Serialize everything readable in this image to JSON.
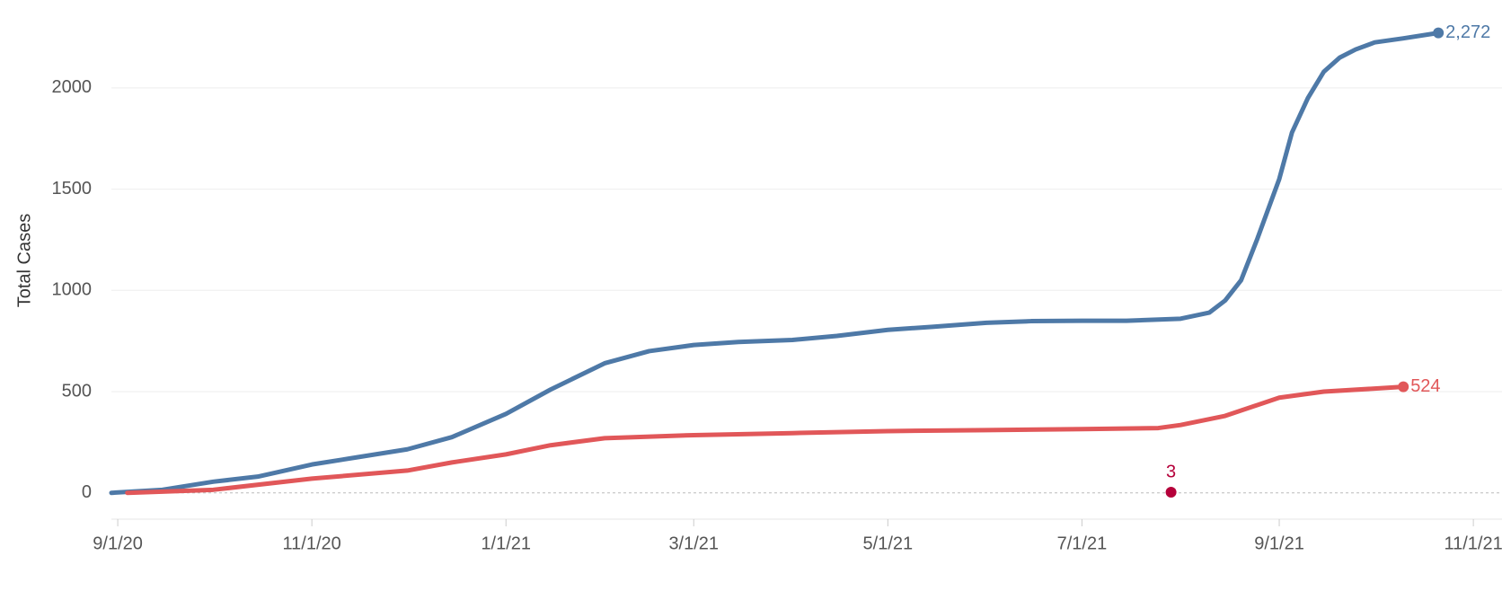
{
  "chart_data": {
    "type": "line",
    "y_label": "Total Cases",
    "xlim": [
      "2020-08-30",
      "2021-11-10"
    ],
    "xticks": [
      {
        "value": "2020-09-01",
        "label": "9/1/20"
      },
      {
        "value": "2020-11-01",
        "label": "11/1/20"
      },
      {
        "value": "2021-01-01",
        "label": "1/1/21"
      },
      {
        "value": "2021-03-01",
        "label": "3/1/21"
      },
      {
        "value": "2021-05-01",
        "label": "5/1/21"
      },
      {
        "value": "2021-07-01",
        "label": "7/1/21"
      },
      {
        "value": "2021-09-01",
        "label": "9/1/21"
      },
      {
        "value": "2021-11-01",
        "label": "11/1/21"
      }
    ],
    "ylim": [
      -130,
      2390
    ],
    "yticks": [
      0,
      500,
      1000,
      1500,
      2000
    ],
    "grid": true,
    "series": [
      {
        "color": "#4e79a7",
        "x": [
          "2020-08-30",
          "2020-09-15",
          "2020-10-01",
          "2020-10-15",
          "2020-11-01",
          "2020-11-15",
          "2020-12-01",
          "2020-12-15",
          "2021-01-01",
          "2021-01-15",
          "2021-02-01",
          "2021-02-15",
          "2021-03-01",
          "2021-03-15",
          "2021-04-01",
          "2021-04-15",
          "2021-05-01",
          "2021-05-15",
          "2021-06-01",
          "2021-06-15",
          "2021-07-01",
          "2021-07-15",
          "2021-08-01",
          "2021-08-10",
          "2021-08-15",
          "2021-08-20",
          "2021-08-25",
          "2021-09-01",
          "2021-09-05",
          "2021-09-10",
          "2021-09-15",
          "2021-09-20",
          "2021-09-25",
          "2021-10-01",
          "2021-10-10",
          "2021-10-21"
        ],
        "values": [
          0,
          15,
          55,
          80,
          140,
          175,
          215,
          275,
          390,
          510,
          640,
          700,
          730,
          745,
          755,
          775,
          805,
          820,
          840,
          848,
          850,
          850,
          860,
          890,
          950,
          1050,
          1250,
          1550,
          1780,
          1950,
          2080,
          2150,
          2190,
          2225,
          2245,
          2272
        ],
        "value_labels": [
          null,
          null,
          null,
          null,
          null,
          null,
          null,
          null,
          null,
          null,
          null,
          null,
          null,
          null,
          null,
          null,
          null,
          null,
          null,
          null,
          null,
          null,
          null,
          null,
          null,
          null,
          null,
          null,
          null,
          null,
          null,
          null,
          null,
          null,
          null,
          "2,272"
        ]
      },
      {
        "color": "#e15759",
        "x": [
          "2020-09-04",
          "2020-10-01",
          "2020-11-01",
          "2020-12-01",
          "2020-12-15",
          "2021-01-01",
          "2021-01-15",
          "2021-02-01",
          "2021-03-01",
          "2021-04-01",
          "2021-05-01",
          "2021-06-01",
          "2021-07-01",
          "2021-07-25",
          "2021-08-01",
          "2021-08-15",
          "2021-09-01",
          "2021-09-15",
          "2021-10-01",
          "2021-10-10"
        ],
        "values": [
          0,
          15,
          70,
          110,
          150,
          190,
          235,
          270,
          285,
          295,
          305,
          310,
          315,
          320,
          335,
          380,
          470,
          500,
          515,
          524
        ],
        "value_labels": [
          null,
          null,
          null,
          null,
          null,
          null,
          null,
          null,
          null,
          null,
          null,
          null,
          null,
          null,
          null,
          null,
          null,
          null,
          null,
          "524"
        ]
      },
      {
        "color": "#b5003a",
        "x": [
          "2021-07-29"
        ],
        "values": [
          3
        ],
        "value_labels": [
          "3"
        ]
      }
    ]
  }
}
